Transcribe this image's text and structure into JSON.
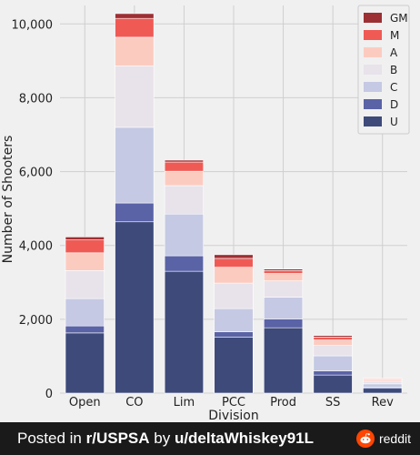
{
  "chart_data": {
    "type": "bar",
    "stacked": true,
    "title": "",
    "xlabel": "Division",
    "ylabel": "Number of Shooters",
    "ylim": [
      0,
      10500
    ],
    "yticks": [
      0,
      2000,
      4000,
      6000,
      8000,
      10000
    ],
    "ytick_labels": [
      "0",
      "2,000",
      "4,000",
      "6,000",
      "8,000",
      "10,000"
    ],
    "grid": true,
    "legend_position": "top-right",
    "categories": [
      "Open",
      "CO",
      "Lim",
      "PCC",
      "Prod",
      "SS",
      "Rev"
    ],
    "series": [
      {
        "name": "U",
        "color": "#3d4a7a",
        "values": [
          1630,
          4640,
          3300,
          1520,
          1770,
          490,
          130
        ]
      },
      {
        "name": "D",
        "color": "#5a63a6",
        "values": [
          190,
          510,
          420,
          140,
          240,
          110,
          30
        ]
      },
      {
        "name": "C",
        "color": "#c5c9e3",
        "values": [
          740,
          2050,
          1130,
          630,
          590,
          410,
          90
        ]
      },
      {
        "name": "B",
        "color": "#e8e2ea",
        "values": [
          760,
          1660,
          770,
          690,
          440,
          280,
          70
        ]
      },
      {
        "name": "A",
        "color": "#fccbc0",
        "values": [
          480,
          780,
          390,
          430,
          200,
          150,
          40
        ]
      },
      {
        "name": "M",
        "color": "#f05a55",
        "values": [
          350,
          510,
          250,
          240,
          80,
          80,
          25
        ]
      },
      {
        "name": "GM",
        "color": "#9c2f33",
        "values": [
          80,
          130,
          50,
          100,
          40,
          40,
          15
        ]
      }
    ]
  },
  "footer": {
    "posted_in": "Posted in ",
    "subreddit": "r/USPSA",
    "by": " by ",
    "user": "u/deltaWhiskey91L",
    "brand": "reddit",
    "brand_color": "#ff4500"
  }
}
